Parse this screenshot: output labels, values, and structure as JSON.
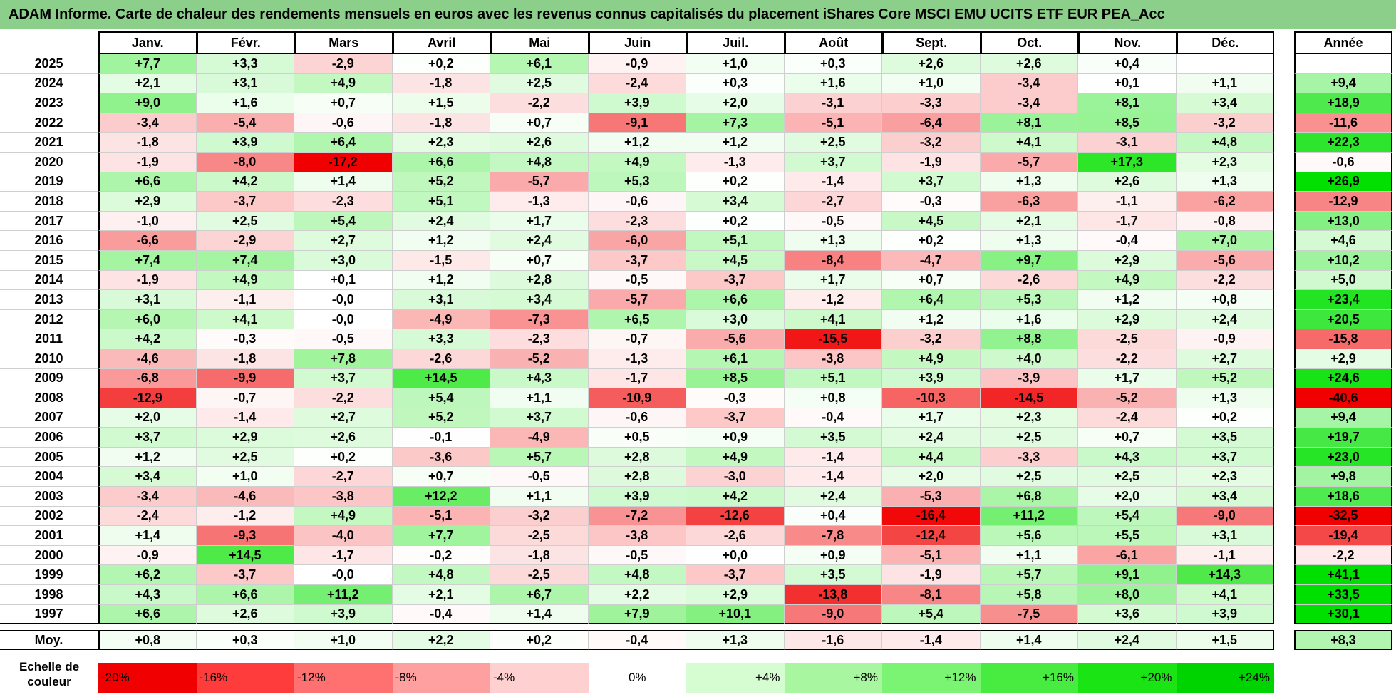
{
  "title": "ADAM Informe. Carte de chaleur des rendements mensuels en euros avec les revenus connus capitalisés du placement iShares Core MSCI EMU UCITS ETF EUR PEA_Acc",
  "chart_data": {
    "type": "heatmap",
    "columns": [
      "Janv.",
      "Févr.",
      "Mars",
      "Avril",
      "Mai",
      "Juin",
      "Juil.",
      "Août",
      "Sept.",
      "Oct.",
      "Nov.",
      "Déc."
    ],
    "annual_header": "Année",
    "rows": [
      {
        "year": "2025",
        "values": [
          "+7,7",
          "+3,3",
          "-2,9",
          "+0,2",
          "+6,1",
          "-0,9",
          "+1,0",
          "+0,3",
          "+2,6",
          "+2,6",
          "+0,4",
          ""
        ],
        "annual": ""
      },
      {
        "year": "2024",
        "values": [
          "+2,1",
          "+3,1",
          "+4,9",
          "-1,8",
          "+2,5",
          "-2,4",
          "+0,3",
          "+1,6",
          "+1,0",
          "-3,4",
          "+0,1",
          "+1,1"
        ],
        "annual": "+9,4"
      },
      {
        "year": "2023",
        "values": [
          "+9,0",
          "+1,6",
          "+0,7",
          "+1,5",
          "-2,2",
          "+3,9",
          "+2,0",
          "-3,1",
          "-3,3",
          "-3,4",
          "+8,1",
          "+3,4"
        ],
        "annual": "+18,9"
      },
      {
        "year": "2022",
        "values": [
          "-3,4",
          "-5,4",
          "-0,6",
          "-1,8",
          "+0,7",
          "-9,1",
          "+7,3",
          "-5,1",
          "-6,4",
          "+8,1",
          "+8,5",
          "-3,2"
        ],
        "annual": "-11,6"
      },
      {
        "year": "2021",
        "values": [
          "-1,8",
          "+3,9",
          "+6,4",
          "+2,3",
          "+2,6",
          "+1,2",
          "+1,2",
          "+2,5",
          "-3,2",
          "+4,1",
          "-3,1",
          "+4,8"
        ],
        "annual": "+22,3"
      },
      {
        "year": "2020",
        "values": [
          "-1,9",
          "-8,0",
          "-17,2",
          "+6,6",
          "+4,8",
          "+4,9",
          "-1,3",
          "+3,7",
          "-1,9",
          "-5,7",
          "+17,3",
          "+2,3"
        ],
        "annual": "-0,6"
      },
      {
        "year": "2019",
        "values": [
          "+6,6",
          "+4,2",
          "+1,4",
          "+5,2",
          "-5,7",
          "+5,3",
          "+0,2",
          "-1,4",
          "+3,7",
          "+1,3",
          "+2,6",
          "+1,3"
        ],
        "annual": "+26,9"
      },
      {
        "year": "2018",
        "values": [
          "+2,9",
          "-3,7",
          "-2,3",
          "+5,1",
          "-1,3",
          "-0,6",
          "+3,4",
          "-2,7",
          "-0,3",
          "-6,3",
          "-1,1",
          "-6,2"
        ],
        "annual": "-12,9"
      },
      {
        "year": "2017",
        "values": [
          "-1,0",
          "+2,5",
          "+5,4",
          "+2,4",
          "+1,7",
          "-2,3",
          "+0,2",
          "-0,5",
          "+4,5",
          "+2,1",
          "-1,7",
          "-0,8"
        ],
        "annual": "+13,0"
      },
      {
        "year": "2016",
        "values": [
          "-6,6",
          "-2,9",
          "+2,7",
          "+1,2",
          "+2,4",
          "-6,0",
          "+5,1",
          "+1,3",
          "+0,2",
          "+1,3",
          "-0,4",
          "+7,0"
        ],
        "annual": "+4,6"
      },
      {
        "year": "2015",
        "values": [
          "+7,4",
          "+7,4",
          "+3,0",
          "-1,5",
          "+0,7",
          "-3,7",
          "+4,5",
          "-8,4",
          "-4,7",
          "+9,7",
          "+2,9",
          "-5,6"
        ],
        "annual": "+10,2"
      },
      {
        "year": "2014",
        "values": [
          "-1,9",
          "+4,9",
          "+0,1",
          "+1,2",
          "+2,8",
          "-0,5",
          "-3,7",
          "+1,7",
          "+0,7",
          "-2,6",
          "+4,9",
          "-2,2"
        ],
        "annual": "+5,0"
      },
      {
        "year": "2013",
        "values": [
          "+3,1",
          "-1,1",
          "-0,0",
          "+3,1",
          "+3,4",
          "-5,7",
          "+6,6",
          "-1,2",
          "+6,4",
          "+5,3",
          "+1,2",
          "+0,8"
        ],
        "annual": "+23,4"
      },
      {
        "year": "2012",
        "values": [
          "+6,0",
          "+4,1",
          "-0,0",
          "-4,9",
          "-7,3",
          "+6,5",
          "+3,0",
          "+4,1",
          "+1,2",
          "+1,6",
          "+2,9",
          "+2,4"
        ],
        "annual": "+20,5"
      },
      {
        "year": "2011",
        "values": [
          "+4,2",
          "-0,3",
          "-0,5",
          "+3,3",
          "-2,3",
          "-0,7",
          "-5,6",
          "-15,5",
          "-3,2",
          "+8,8",
          "-2,5",
          "-0,9"
        ],
        "annual": "-15,8"
      },
      {
        "year": "2010",
        "values": [
          "-4,6",
          "-1,8",
          "+7,8",
          "-2,6",
          "-5,2",
          "-1,3",
          "+6,1",
          "-3,8",
          "+4,9",
          "+4,0",
          "-2,2",
          "+2,7"
        ],
        "annual": "+2,9"
      },
      {
        "year": "2009",
        "values": [
          "-6,8",
          "-9,9",
          "+3,7",
          "+14,5",
          "+4,3",
          "-1,7",
          "+8,5",
          "+5,1",
          "+3,9",
          "-3,9",
          "+1,7",
          "+5,2"
        ],
        "annual": "+24,6"
      },
      {
        "year": "2008",
        "values": [
          "-12,9",
          "-0,7",
          "-2,2",
          "+5,4",
          "+1,1",
          "-10,9",
          "-0,3",
          "+0,8",
          "-10,3",
          "-14,5",
          "-5,2",
          "+1,3"
        ],
        "annual": "-40,6"
      },
      {
        "year": "2007",
        "values": [
          "+2,0",
          "-1,4",
          "+2,7",
          "+5,2",
          "+3,7",
          "-0,6",
          "-3,7",
          "-0,4",
          "+1,7",
          "+2,3",
          "-2,4",
          "+0,2"
        ],
        "annual": "+9,4"
      },
      {
        "year": "2006",
        "values": [
          "+3,7",
          "+2,9",
          "+2,6",
          "-0,1",
          "-4,9",
          "+0,5",
          "+0,9",
          "+3,5",
          "+2,4",
          "+2,5",
          "+0,7",
          "+3,5"
        ],
        "annual": "+19,7"
      },
      {
        "year": "2005",
        "values": [
          "+1,2",
          "+2,5",
          "+0,2",
          "-3,6",
          "+5,7",
          "+2,8",
          "+4,9",
          "-1,4",
          "+4,4",
          "-3,3",
          "+4,3",
          "+3,7"
        ],
        "annual": "+23,0"
      },
      {
        "year": "2004",
        "values": [
          "+3,4",
          "+1,0",
          "-2,7",
          "+0,7",
          "-0,5",
          "+2,8",
          "-3,0",
          "-1,4",
          "+2,0",
          "+2,5",
          "+2,5",
          "+2,3"
        ],
        "annual": "+9,8"
      },
      {
        "year": "2003",
        "values": [
          "-3,4",
          "-4,6",
          "-3,8",
          "+12,2",
          "+1,1",
          "+3,9",
          "+4,2",
          "+2,4",
          "-5,3",
          "+6,8",
          "+2,0",
          "+3,4"
        ],
        "annual": "+18,6"
      },
      {
        "year": "2002",
        "values": [
          "-2,4",
          "-1,2",
          "+4,9",
          "-5,1",
          "-3,2",
          "-7,2",
          "-12,6",
          "+0,4",
          "-16,4",
          "+11,2",
          "+5,4",
          "-9,0"
        ],
        "annual": "-32,5"
      },
      {
        "year": "2001",
        "values": [
          "+1,4",
          "-9,3",
          "-4,0",
          "+7,7",
          "-2,5",
          "-3,8",
          "-2,6",
          "-7,8",
          "-12,4",
          "+5,6",
          "+5,5",
          "+3,1"
        ],
        "annual": "-19,4"
      },
      {
        "year": "2000",
        "values": [
          "-0,9",
          "+14,5",
          "-1,7",
          "-0,2",
          "-1,8",
          "-0,5",
          "+0,0",
          "+0,9",
          "-5,1",
          "+1,1",
          "-6,1",
          "-1,1"
        ],
        "annual": "-2,2"
      },
      {
        "year": "1999",
        "values": [
          "+6,2",
          "-3,7",
          "-0,0",
          "+4,8",
          "-2,5",
          "+4,8",
          "-3,7",
          "+3,5",
          "-1,9",
          "+5,7",
          "+9,1",
          "+14,3"
        ],
        "annual": "+41,1"
      },
      {
        "year": "1998",
        "values": [
          "+4,3",
          "+6,6",
          "+11,2",
          "+2,1",
          "+6,7",
          "+2,2",
          "+2,9",
          "-13,8",
          "-8,1",
          "+5,8",
          "+8,0",
          "+4,1"
        ],
        "annual": "+33,5"
      },
      {
        "year": "1997",
        "values": [
          "+6,6",
          "+2,6",
          "+3,9",
          "-0,4",
          "+1,4",
          "+7,9",
          "+10,1",
          "-9,0",
          "+5,4",
          "-7,5",
          "+3,6",
          "+3,9"
        ],
        "annual": "+30,1"
      }
    ],
    "average": {
      "label": "Moy.",
      "values": [
        "+0,8",
        "+0,3",
        "+1,0",
        "+2,2",
        "+0,2",
        "-0,4",
        "+1,3",
        "-1,6",
        "-1,4",
        "+1,4",
        "+2,4",
        "+1,5"
      ],
      "annual": "+8,3"
    },
    "color_scale": {
      "label_line1": "Echelle de",
      "label_line2": "couleur",
      "steps": [
        {
          "label": "-20%",
          "color": "#f00000"
        },
        {
          "label": "-16%",
          "color": "#ff3c3c"
        },
        {
          "label": "-12%",
          "color": "#ff7070"
        },
        {
          "label": "-8%",
          "color": "#ffa0a0"
        },
        {
          "label": "-4%",
          "color": "#ffd0d0"
        },
        {
          "label": "0%",
          "color": "#ffffff"
        },
        {
          "label": "+4%",
          "color": "#d6fcd2"
        },
        {
          "label": "+8%",
          "color": "#a8f7a0"
        },
        {
          "label": "+12%",
          "color": "#7af472"
        },
        {
          "label": "+16%",
          "color": "#48ec40"
        },
        {
          "label": "+20%",
          "color": "#1ae414"
        },
        {
          "label": "+24%",
          "color": "#00d400"
        }
      ]
    }
  }
}
